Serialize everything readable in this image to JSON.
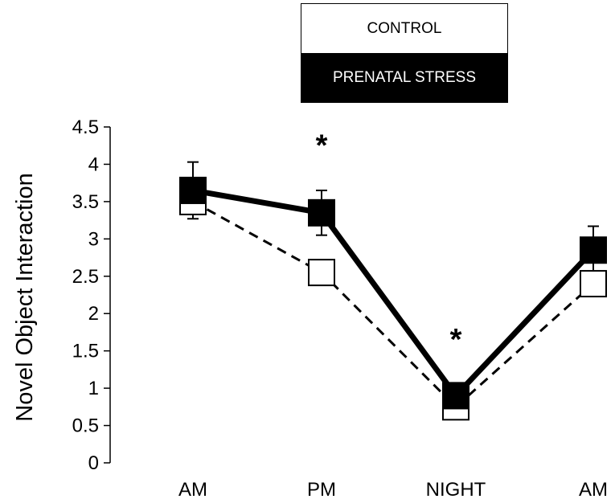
{
  "chart_data": {
    "type": "line",
    "title": "",
    "ylabel": "Novel Object Interaction",
    "xlabel": "",
    "categories": [
      "AM",
      "PM",
      "NIGHT",
      "AM"
    ],
    "ylim": [
      0,
      4.5
    ],
    "yticks": [
      "0",
      "0.5",
      "1",
      "1.5",
      "2",
      "2.5",
      "3",
      "3.5",
      "4",
      "4.5"
    ],
    "grid": false,
    "legend_position": "top",
    "series": [
      {
        "name": "CONTROL",
        "values": [
          3.5,
          2.55,
          0.75,
          2.4
        ],
        "line_style": "dashed",
        "marker": "open-square",
        "color": "#000000"
      },
      {
        "name": "PRENATAL STRESS",
        "values": [
          3.65,
          3.35,
          0.9,
          2.85
        ],
        "error": [
          0.38,
          0.3,
          0.12,
          0.32
        ],
        "line_style": "solid",
        "marker": "filled-square",
        "color": "#000000"
      }
    ],
    "annotations": [
      {
        "category_index": 1,
        "y": 4.4,
        "text": "*"
      },
      {
        "category_index": 2,
        "y": 1.8,
        "text": "*"
      }
    ]
  }
}
